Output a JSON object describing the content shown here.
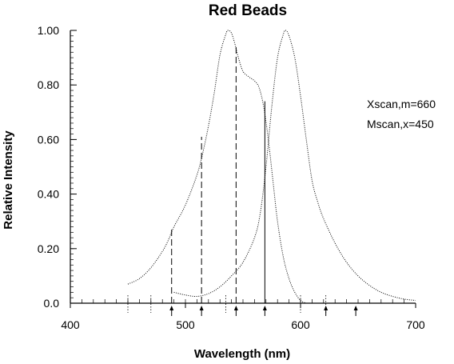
{
  "chart_data": {
    "type": "line",
    "title": "Red Beads",
    "xlabel": "Wavelength (nm)",
    "ylabel": "Relative Intensity",
    "xlim": [
      400,
      700
    ],
    "ylim": [
      0,
      1
    ],
    "x_ticks": [
      400,
      500,
      600,
      700
    ],
    "x_tick_labels": [
      "400",
      "500",
      "600",
      "700"
    ],
    "y_ticks": [
      0,
      0.2,
      0.4,
      0.6,
      0.8,
      1.0
    ],
    "y_tick_labels": [
      "0.0",
      "0.20",
      "0.40",
      "0.60",
      "0.80",
      "1.00"
    ],
    "annotations": [
      "Xscan,m=660",
      "Mscan,x=450"
    ],
    "series": [
      {
        "style": "dotted",
        "color": "#000000",
        "points": [
          [
            450,
            0.07
          ],
          [
            460,
            0.09
          ],
          [
            470,
            0.13
          ],
          [
            480,
            0.19
          ],
          [
            485,
            0.23
          ],
          [
            490,
            0.28
          ],
          [
            500,
            0.36
          ],
          [
            510,
            0.47
          ],
          [
            515,
            0.55
          ],
          [
            520,
            0.65
          ],
          [
            525,
            0.77
          ],
          [
            530,
            0.91
          ],
          [
            535,
            0.985
          ],
          [
            537,
            1.0
          ],
          [
            540,
            0.99
          ],
          [
            543,
            0.95
          ],
          [
            546,
            0.9
          ],
          [
            550,
            0.85
          ],
          [
            555,
            0.83
          ],
          [
            560,
            0.815
          ],
          [
            564,
            0.79
          ],
          [
            568,
            0.72
          ],
          [
            572,
            0.6
          ],
          [
            576,
            0.45
          ],
          [
            580,
            0.3
          ],
          [
            585,
            0.17
          ],
          [
            590,
            0.09
          ],
          [
            595,
            0.04
          ],
          [
            600,
            0.01
          ],
          [
            605,
            0.0
          ]
        ]
      },
      {
        "style": "dotted",
        "color": "#000000",
        "points": [
          [
            490,
            0.04
          ],
          [
            500,
            0.03
          ],
          [
            510,
            0.025
          ],
          [
            520,
            0.035
          ],
          [
            530,
            0.06
          ],
          [
            540,
            0.1
          ],
          [
            550,
            0.15
          ],
          [
            560,
            0.24
          ],
          [
            565,
            0.33
          ],
          [
            570,
            0.5
          ],
          [
            575,
            0.72
          ],
          [
            580,
            0.9
          ],
          [
            585,
            0.985
          ],
          [
            587,
            1.0
          ],
          [
            590,
            0.98
          ],
          [
            595,
            0.9
          ],
          [
            600,
            0.76
          ],
          [
            605,
            0.6
          ],
          [
            610,
            0.45
          ],
          [
            615,
            0.37
          ],
          [
            620,
            0.31
          ],
          [
            630,
            0.22
          ],
          [
            640,
            0.15
          ],
          [
            650,
            0.1
          ],
          [
            660,
            0.065
          ],
          [
            670,
            0.04
          ],
          [
            680,
            0.025
          ],
          [
            690,
            0.015
          ],
          [
            700,
            0.01
          ]
        ]
      }
    ],
    "marker_lines": [
      {
        "x": 488,
        "y": 0.28,
        "style": "dashed"
      },
      {
        "x": 514,
        "y": 0.61,
        "style": "dashed"
      },
      {
        "x": 544,
        "y": 0.94,
        "style": "dashed"
      },
      {
        "x": 569,
        "y": 0.74,
        "style": "solid"
      }
    ],
    "arrows_x": [
      488,
      514,
      544,
      569,
      622,
      648
    ],
    "baseline_ticks_x": [
      450,
      470,
      535,
      600,
      622
    ]
  }
}
